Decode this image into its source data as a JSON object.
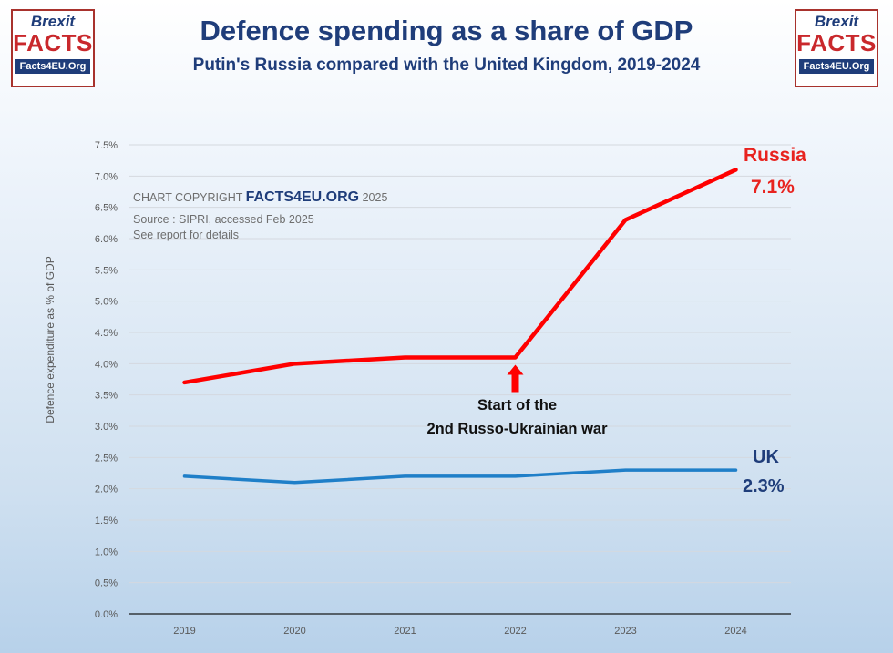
{
  "title": "Defence spending as a share of GDP",
  "subtitle": "Putin's Russia compared with the United Kingdom, 2019-2024",
  "logo": {
    "line1": "Brexit",
    "line2": "FACTS",
    "line3": "Facts4EU.Org"
  },
  "credit": {
    "prefix": "CHART COPYRIGHT ",
    "brand": "FACTS4EU.ORG",
    "year": " 2025",
    "source": "Source : SIPRI, accessed Feb 2025",
    "note": "See report for details"
  },
  "annotation": {
    "line1": "Start of the",
    "line2": "2nd Russo-Ukrainian war",
    "year": "2022"
  },
  "labels": {
    "russia_name": "Russia",
    "russia_value": "7.1%",
    "uk_name": "UK",
    "uk_value": "2.3%"
  },
  "colors": {
    "russia": "#ff0000",
    "uk": "#1f7fc8",
    "arrow": "#ff0000",
    "title": "#1f3d7a"
  },
  "chart_data": {
    "type": "line",
    "title": "Defence spending as a share of GDP",
    "subtitle": "Putin's Russia compared with the United Kingdom, 2019-2024",
    "ylabel": "Defence expenditure as % of GDP",
    "xlabel": "",
    "ylim": [
      0,
      7.5
    ],
    "yticks": [
      "0.0%",
      "0.5%",
      "1.0%",
      "1.5%",
      "2.0%",
      "2.5%",
      "3.0%",
      "3.5%",
      "4.0%",
      "4.5%",
      "5.0%",
      "5.5%",
      "6.0%",
      "6.5%",
      "7.0%",
      "7.5%"
    ],
    "categories": [
      "2019",
      "2020",
      "2021",
      "2022",
      "2023",
      "2024"
    ],
    "grid": true,
    "series": [
      {
        "name": "Russia",
        "values": [
          3.7,
          4.0,
          4.1,
          4.1,
          6.3,
          7.1
        ]
      },
      {
        "name": "UK",
        "values": [
          2.2,
          2.1,
          2.2,
          2.2,
          2.3,
          2.3
        ]
      }
    ]
  }
}
